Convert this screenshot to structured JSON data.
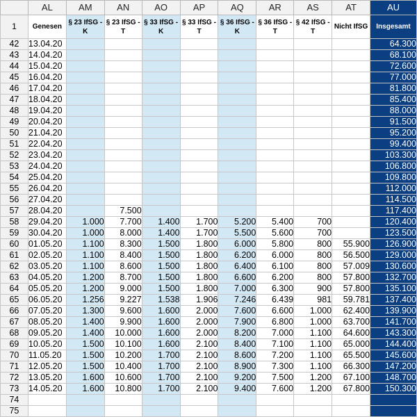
{
  "columns": [
    "AL",
    "AM",
    "AN",
    "AO",
    "AP",
    "AQ",
    "AR",
    "AS",
    "AT",
    "AU"
  ],
  "header": {
    "row_no": "1",
    "labels": [
      "Genesen",
      "§ 23 IfSG -K",
      "§ 23 IfSG -T",
      "§ 33 IfSG -K",
      "§ 33 IfSG -T",
      "§ 36 IfSG -K",
      "§ 36 IfSG -T",
      "§ 42 IfSG -T",
      "Nicht IfSG",
      "Insgesamt"
    ]
  },
  "rows": [
    {
      "n": "42",
      "c": [
        "13.04.20",
        "",
        "",
        "",
        "",
        "",
        "",
        "",
        "",
        "64.300"
      ]
    },
    {
      "n": "43",
      "c": [
        "14.04.20",
        "",
        "",
        "",
        "",
        "",
        "",
        "",
        "",
        "68.100"
      ]
    },
    {
      "n": "44",
      "c": [
        "15.04.20",
        "",
        "",
        "",
        "",
        "",
        "",
        "",
        "",
        "72.600"
      ]
    },
    {
      "n": "45",
      "c": [
        "16.04.20",
        "",
        "",
        "",
        "",
        "",
        "",
        "",
        "",
        "77.000"
      ]
    },
    {
      "n": "46",
      "c": [
        "17.04.20",
        "",
        "",
        "",
        "",
        "",
        "",
        "",
        "",
        "81.800"
      ]
    },
    {
      "n": "47",
      "c": [
        "18.04.20",
        "",
        "",
        "",
        "",
        "",
        "",
        "",
        "",
        "85.400"
      ]
    },
    {
      "n": "48",
      "c": [
        "19.04.20",
        "",
        "",
        "",
        "",
        "",
        "",
        "",
        "",
        "88.000"
      ]
    },
    {
      "n": "49",
      "c": [
        "20.04.20",
        "",
        "",
        "",
        "",
        "",
        "",
        "",
        "",
        "91.500"
      ]
    },
    {
      "n": "50",
      "c": [
        "21.04.20",
        "",
        "",
        "",
        "",
        "",
        "",
        "",
        "",
        "95.200"
      ]
    },
    {
      "n": "51",
      "c": [
        "22.04.20",
        "",
        "",
        "",
        "",
        "",
        "",
        "",
        "",
        "99.400"
      ]
    },
    {
      "n": "52",
      "c": [
        "23.04.20",
        "",
        "",
        "",
        "",
        "",
        "",
        "",
        "",
        "103.300"
      ]
    },
    {
      "n": "53",
      "c": [
        "24.04.20",
        "",
        "",
        "",
        "",
        "",
        "",
        "",
        "",
        "106.800"
      ]
    },
    {
      "n": "54",
      "c": [
        "25.04.20",
        "",
        "",
        "",
        "",
        "",
        "",
        "",
        "",
        "109.800"
      ]
    },
    {
      "n": "55",
      "c": [
        "26.04.20",
        "",
        "",
        "",
        "",
        "",
        "",
        "",
        "",
        "112.000"
      ]
    },
    {
      "n": "56",
      "c": [
        "27.04.20",
        "",
        "",
        "",
        "",
        "",
        "",
        "",
        "",
        "114.500"
      ]
    },
    {
      "n": "57",
      "c": [
        "28.04.20",
        "",
        "7.500",
        "",
        "",
        "",
        "",
        "",
        "",
        "117.400"
      ]
    },
    {
      "n": "58",
      "c": [
        "29.04.20",
        "1.000",
        "7.700",
        "1.400",
        "1.700",
        "5.200",
        "5.400",
        "700",
        "",
        "120.400"
      ]
    },
    {
      "n": "59",
      "c": [
        "30.04.20",
        "1.000",
        "8.000",
        "1.400",
        "1.700",
        "5.500",
        "5.600",
        "700",
        "",
        "123.500"
      ]
    },
    {
      "n": "60",
      "c": [
        "01.05.20",
        "1.100",
        "8.300",
        "1.500",
        "1.800",
        "6.000",
        "5.800",
        "800",
        "55.900",
        "126.900"
      ]
    },
    {
      "n": "61",
      "c": [
        "02.05.20",
        "1.100",
        "8.400",
        "1.500",
        "1.800",
        "6.200",
        "6.000",
        "800",
        "56.500",
        "129.000"
      ]
    },
    {
      "n": "62",
      "c": [
        "03.05.20",
        "1.100",
        "8.600",
        "1.500",
        "1.800",
        "6.400",
        "6.100",
        "800",
        "57.009",
        "130.600"
      ]
    },
    {
      "n": "63",
      "c": [
        "04.05.20",
        "1.200",
        "8.700",
        "1.500",
        "1.800",
        "6.600",
        "6.200",
        "800",
        "57.800",
        "132.700"
      ]
    },
    {
      "n": "64",
      "c": [
        "05.05.20",
        "1.200",
        "9.000",
        "1.500",
        "1.800",
        "7.000",
        "6.300",
        "900",
        "57.800",
        "135.100"
      ]
    },
    {
      "n": "65",
      "c": [
        "06.05.20",
        "1.256",
        "9.227",
        "1.538",
        "1.906",
        "7.246",
        "6.439",
        "981",
        "59.781",
        "137.400"
      ]
    },
    {
      "n": "66",
      "c": [
        "07.05.20",
        "1.300",
        "9.600",
        "1.600",
        "2.000",
        "7.600",
        "6.600",
        "1.000",
        "62.400",
        "139.900"
      ]
    },
    {
      "n": "67",
      "c": [
        "08.05.20",
        "1.400",
        "9.900",
        "1.600",
        "2.000",
        "7.900",
        "6.800",
        "1.000",
        "63.700",
        "141.700"
      ]
    },
    {
      "n": "68",
      "c": [
        "09.05.20",
        "1.400",
        "10.000",
        "1.600",
        "2.000",
        "8.200",
        "7.000",
        "1.100",
        "64.600",
        "143.300"
      ]
    },
    {
      "n": "69",
      "c": [
        "10.05.20",
        "1.500",
        "10.100",
        "1.600",
        "2.100",
        "8.400",
        "7.100",
        "1.100",
        "65.000",
        "144.400"
      ]
    },
    {
      "n": "70",
      "c": [
        "11.05.20",
        "1.500",
        "10.200",
        "1.700",
        "2.100",
        "8.600",
        "7.200",
        "1.100",
        "65.500",
        "145.600"
      ]
    },
    {
      "n": "71",
      "c": [
        "12.05.20",
        "1.500",
        "10.400",
        "1.700",
        "2.100",
        "8.900",
        "7.300",
        "1.100",
        "66.300",
        "147.200"
      ]
    },
    {
      "n": "72",
      "c": [
        "13.05.20",
        "1.600",
        "10.600",
        "1.700",
        "2.100",
        "9.200",
        "7.500",
        "1.200",
        "67.100",
        "148.700"
      ]
    },
    {
      "n": "73",
      "c": [
        "14.05.20",
        "1.600",
        "10.800",
        "1.700",
        "2.100",
        "9.400",
        "7.600",
        "1.200",
        "67.800",
        "150.300"
      ]
    },
    {
      "n": "74",
      "c": [
        "",
        "",
        "",
        "",
        "",
        "",
        "",
        "",
        "",
        ""
      ]
    },
    {
      "n": "75",
      "c": [
        "",
        "",
        "",
        "",
        "",
        "",
        "",
        "",
        "",
        ""
      ]
    }
  ],
  "colors": {
    "highlight_blue": "#d3e8f5",
    "selected_navy": "#0b3f82"
  }
}
